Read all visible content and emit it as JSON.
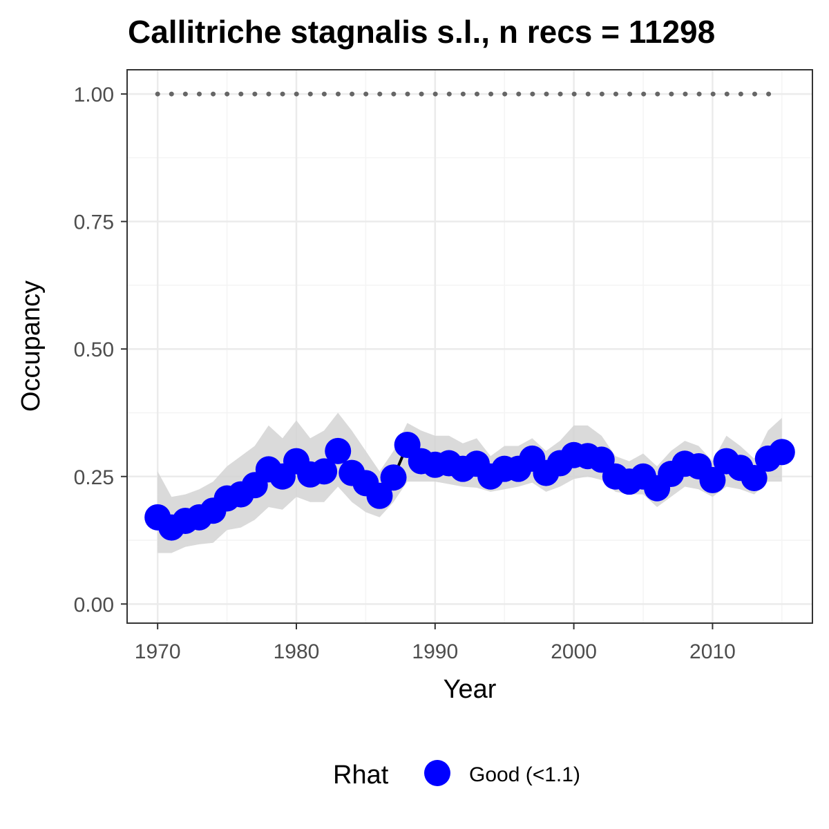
{
  "chart_data": {
    "type": "line",
    "title": "Callitriche stagnalis s.l., n recs = 11298",
    "xlabel": "Year",
    "ylabel": "Occupancy",
    "xlim": [
      1967.8,
      2017.2
    ],
    "ylim": [
      -0.0375,
      1.0475
    ],
    "x_ticks": [
      1970,
      1980,
      1990,
      2000,
      2010
    ],
    "x_tick_labels": [
      "1970",
      "1980",
      "1990",
      "2000",
      "2010"
    ],
    "y_ticks": [
      0,
      0.25,
      0.5,
      0.75,
      1
    ],
    "y_tick_labels": [
      "0.00",
      "0.25",
      "0.50",
      "0.75",
      "1.00"
    ],
    "grid": true,
    "legend": {
      "title": "Rhat",
      "position": "bottom",
      "entries": [
        {
          "label": "Good (<1.1)",
          "color": "#0000ff"
        }
      ]
    },
    "colors": {
      "points": "#0000ff",
      "line": "#000000",
      "ribbon": "#d3d3d3",
      "reference": "#666666",
      "grid_major": "#ebebeb",
      "grid_minor": "#f4f4f4",
      "panel_border": "#333333"
    },
    "reference_line": {
      "y": 1.0,
      "style": "dotted"
    },
    "series": [
      {
        "name": "Good (<1.1)",
        "x": [
          1970,
          1971,
          1972,
          1973,
          1974,
          1975,
          1976,
          1977,
          1978,
          1979,
          1980,
          1981,
          1982,
          1983,
          1984,
          1985,
          1986,
          1987,
          1988,
          1989,
          1990,
          1991,
          1992,
          1993,
          1994,
          1995,
          1996,
          1997,
          1998,
          1999,
          2000,
          2001,
          2002,
          2003,
          2004,
          2005,
          2006,
          2007,
          2008,
          2009,
          2010,
          2011,
          2012,
          2013,
          2014,
          2015
        ],
        "y": [
          0.17,
          0.15,
          0.163,
          0.17,
          0.183,
          0.207,
          0.215,
          0.233,
          0.264,
          0.25,
          0.28,
          0.254,
          0.26,
          0.3,
          0.257,
          0.237,
          0.212,
          0.248,
          0.312,
          0.28,
          0.273,
          0.276,
          0.265,
          0.275,
          0.25,
          0.265,
          0.265,
          0.285,
          0.257,
          0.276,
          0.292,
          0.29,
          0.283,
          0.25,
          0.24,
          0.25,
          0.227,
          0.255,
          0.275,
          0.27,
          0.243,
          0.28,
          0.267,
          0.247,
          0.285,
          0.298
        ],
        "lower": [
          0.1,
          0.1,
          0.112,
          0.117,
          0.12,
          0.145,
          0.15,
          0.165,
          0.19,
          0.185,
          0.21,
          0.2,
          0.2,
          0.23,
          0.2,
          0.18,
          0.17,
          0.2,
          0.24,
          0.24,
          0.24,
          0.235,
          0.23,
          0.228,
          0.22,
          0.225,
          0.23,
          0.238,
          0.22,
          0.23,
          0.245,
          0.25,
          0.243,
          0.22,
          0.215,
          0.215,
          0.19,
          0.21,
          0.23,
          0.225,
          0.21,
          0.23,
          0.225,
          0.215,
          0.24,
          0.24
        ],
        "upper": [
          0.26,
          0.21,
          0.215,
          0.225,
          0.24,
          0.27,
          0.29,
          0.31,
          0.35,
          0.325,
          0.36,
          0.325,
          0.34,
          0.375,
          0.34,
          0.3,
          0.26,
          0.3,
          0.355,
          0.34,
          0.33,
          0.33,
          0.315,
          0.325,
          0.29,
          0.31,
          0.31,
          0.325,
          0.3,
          0.32,
          0.35,
          0.35,
          0.33,
          0.29,
          0.28,
          0.295,
          0.27,
          0.3,
          0.32,
          0.31,
          0.28,
          0.33,
          0.31,
          0.285,
          0.34,
          0.365
        ]
      }
    ]
  }
}
